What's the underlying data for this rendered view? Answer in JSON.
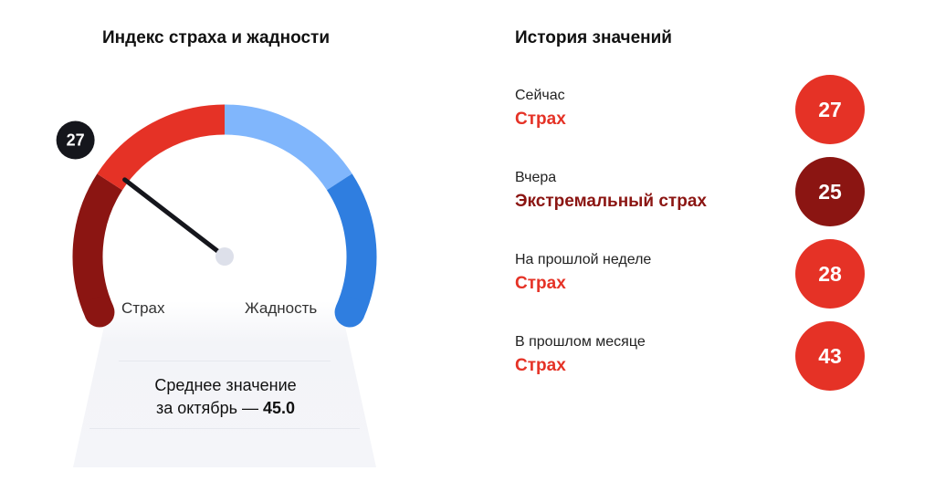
{
  "gauge": {
    "title": "Индекс страха и жадности",
    "value": 27,
    "value_label": "27",
    "range": [
      0,
      100
    ],
    "segments": [
      {
        "from": 0,
        "to": 25,
        "color": "#8b1512"
      },
      {
        "from": 25,
        "to": 50,
        "color": "#e53226"
      },
      {
        "from": 50,
        "to": 75,
        "color": "#80b6fc"
      },
      {
        "from": 75,
        "to": 100,
        "color": "#2f7ee0"
      }
    ],
    "left_label": "Страх",
    "right_label": "Жадность",
    "average_line1": "Среднее значение",
    "average_line2": "за октябрь — ",
    "average_value": "45.0"
  },
  "history": {
    "title": "История значений",
    "items": [
      {
        "label": "Сейчас",
        "status": "Страх",
        "value": "27",
        "color": "#e53226"
      },
      {
        "label": "Вчера",
        "status": "Экстремальный страх",
        "value": "25",
        "color": "#8b1512"
      },
      {
        "label": "На прошлой неделе",
        "status": "Страх",
        "value": "28",
        "color": "#e53226"
      },
      {
        "label": "В прошлом месяце",
        "status": "Страх",
        "value": "43",
        "color": "#e53226"
      }
    ]
  }
}
